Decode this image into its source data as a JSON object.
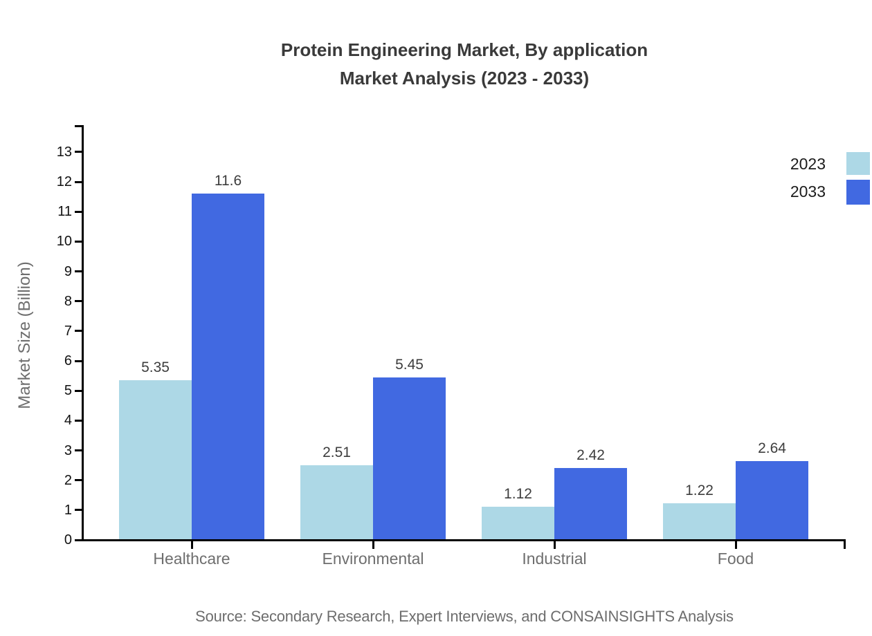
{
  "title": {
    "line1": "Protein Engineering Market, By application",
    "line2": "Market Analysis (2023 - 2033)"
  },
  "source": "Source: Secondary Research, Expert Interviews, and CONSAINSIGHTS Analysis",
  "legend": [
    {
      "label": "2023",
      "color": "#add8e6"
    },
    {
      "label": "2033",
      "color": "#4169e1"
    }
  ],
  "colors": {
    "series_2023": "#add8e6",
    "series_2033": "#4169e1",
    "axis": "#000000",
    "title_text": "#3a3a3a",
    "muted_text": "#6e6e6e",
    "tick_text": "#111111",
    "value_text": "#3d3d3d"
  },
  "chart_data": {
    "type": "bar",
    "categories": [
      "Healthcare",
      "Environmental",
      "Industrial",
      "Food"
    ],
    "series": [
      {
        "name": "2023",
        "color": "#add8e6",
        "values": [
          5.35,
          2.51,
          1.12,
          1.22
        ]
      },
      {
        "name": "2033",
        "color": "#4169e1",
        "values": [
          11.6,
          5.45,
          2.42,
          2.64
        ]
      }
    ],
    "title": "Protein Engineering Market, By application Market Analysis (2023 - 2033)",
    "xlabel": "",
    "ylabel": "Market Size (Billion)",
    "ylim": [
      0,
      13.9
    ],
    "yticks": [
      0,
      1,
      2,
      3,
      4,
      5,
      6,
      7,
      8,
      9,
      10,
      11,
      12,
      13
    ],
    "grid": false,
    "value_labels": true,
    "legend_position": "top-right"
  }
}
